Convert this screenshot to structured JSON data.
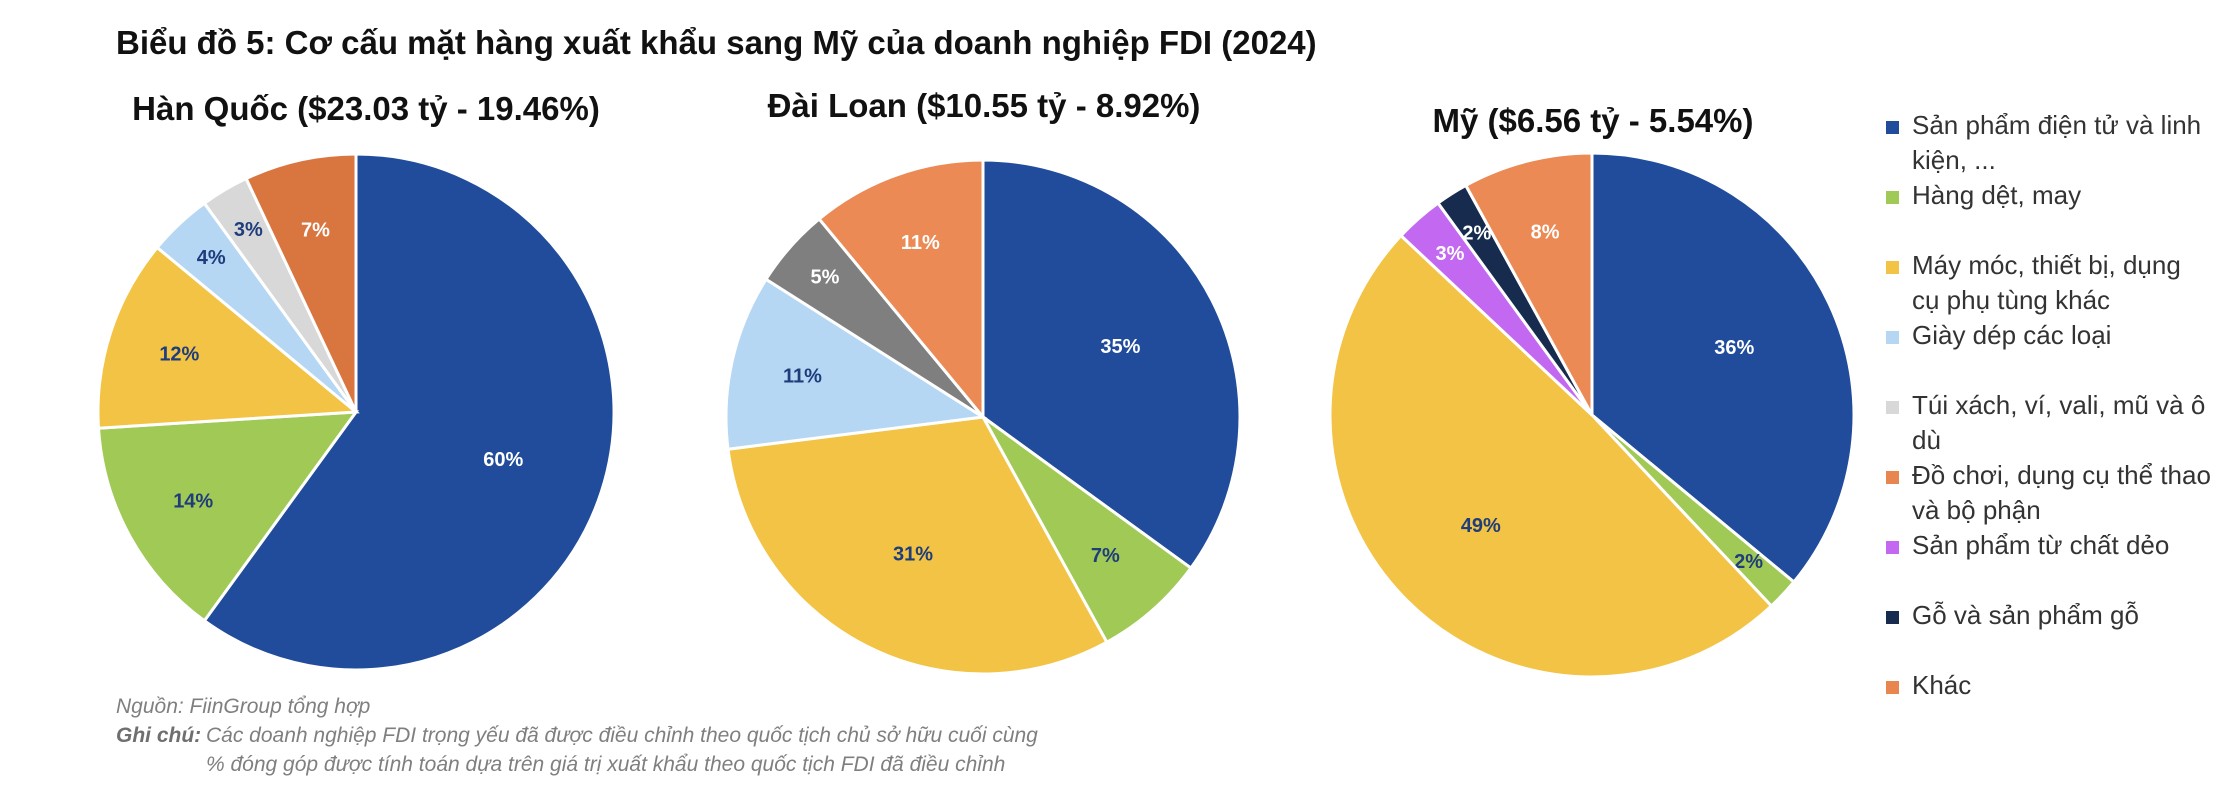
{
  "title": "Biểu đồ 5: Cơ cấu mặt hàng xuất khẩu sang Mỹ của doanh nghiệp FDI (2024)",
  "legend": {
    "items": [
      {
        "label": "Sản phẩm điện tử và linh kiện, ...",
        "color": "#214C9C"
      },
      {
        "label": "Hàng dệt, may",
        "color": "#A1C955"
      },
      {
        "label": "Máy móc, thiết bị, dụng cụ phụ tùng khác",
        "color": "#F2C344"
      },
      {
        "label": "Giày dép các loại",
        "color": "#B5D7F4"
      },
      {
        "label": "Túi xách, ví, vali, mũ và ô dù",
        "color": "#D8D8D8"
      },
      {
        "label": "Đồ chơi, dụng cụ thể thao và bộ phận",
        "color": "#E7864F"
      },
      {
        "label": "Sản phẩm từ chất dẻo",
        "color": "#C268F1"
      },
      {
        "label": "Gỗ và sản phẩm gỗ",
        "color": "#172B4F"
      },
      {
        "label": "Khác",
        "color": "#E7864F"
      }
    ]
  },
  "chart_data": [
    {
      "type": "pie",
      "title": "Hàn Quốc ($23.03 tỷ - 19.46%)",
      "slices": [
        {
          "category": "Sản phẩm điện tử và linh kiện, ...",
          "value": 60,
          "label": "60%",
          "color": "#214C9C"
        },
        {
          "category": "Hàng dệt, may",
          "value": 14,
          "label": "14%",
          "color": "#A1C955"
        },
        {
          "category": "Máy móc, thiết bị, dụng cụ phụ tùng khác",
          "value": 12,
          "label": "12%",
          "color": "#F2C344"
        },
        {
          "category": "Giày dép các loại",
          "value": 4,
          "label": "4%",
          "color": "#B5D7F4"
        },
        {
          "category": "Túi xách, ví, vali, mũ và ô dù",
          "value": 3,
          "label": "3%",
          "color": "#D8D8D8"
        },
        {
          "category": "Khác",
          "value": 7,
          "label": "7%",
          "color": "#D97640"
        }
      ]
    },
    {
      "type": "pie",
      "title": "Đài Loan ($10.55 tỷ - 8.92%)",
      "slices": [
        {
          "category": "Sản phẩm điện tử và linh kiện, ...",
          "value": 35,
          "label": "35%",
          "color": "#214C9C"
        },
        {
          "category": "Hàng dệt, may",
          "value": 7,
          "label": "7%",
          "color": "#A1C955"
        },
        {
          "category": "Máy móc, thiết bị, dụng cụ phụ tùng khác",
          "value": 31,
          "label": "31%",
          "color": "#F2C344"
        },
        {
          "category": "Giày dép các loại",
          "value": 11,
          "label": "11%",
          "color": "#B5D7F4"
        },
        {
          "category": "Túi xách, ví, vali, mũ và ô dù",
          "value": 5,
          "label": "5%",
          "color": "#7F7F7F"
        },
        {
          "category": "Khác",
          "value": 11,
          "label": "11%",
          "color": "#EB8A55"
        }
      ]
    },
    {
      "type": "pie",
      "title": "Mỹ ($6.56 tỷ - 5.54%)",
      "slices": [
        {
          "category": "Sản phẩm điện tử và linh kiện, ...",
          "value": 36,
          "label": "36%",
          "color": "#214C9C"
        },
        {
          "category": "Hàng dệt, may",
          "value": 2,
          "label": "2%",
          "color": "#A1C955"
        },
        {
          "category": "Máy móc, thiết bị, dụng cụ phụ tùng khác",
          "value": 49,
          "label": "49%",
          "color": "#F2C344"
        },
        {
          "category": "Sản phẩm từ chất dẻo",
          "value": 3,
          "label": "3%",
          "color": "#C268F1"
        },
        {
          "category": "Gỗ và sản phẩm gỗ",
          "value": 2,
          "label": "2%",
          "color": "#172B4F"
        },
        {
          "category": "Khác",
          "value": 8,
          "label": "8%",
          "color": "#EB8A55"
        }
      ]
    }
  ],
  "footnotes": {
    "source": "Nguồn: FiinGroup tổng hợp",
    "note_label": "Ghi chú:",
    "note_line1": "Các doanh nghiệp FDI trọng yếu đã được điều chỉnh theo quốc tịch chủ sở hữu cuối cùng",
    "note_line2": "% đóng góp được tính toán dựa trên giá trị xuất khẩu theo quốc tịch FDI đã điều chỉnh"
  }
}
